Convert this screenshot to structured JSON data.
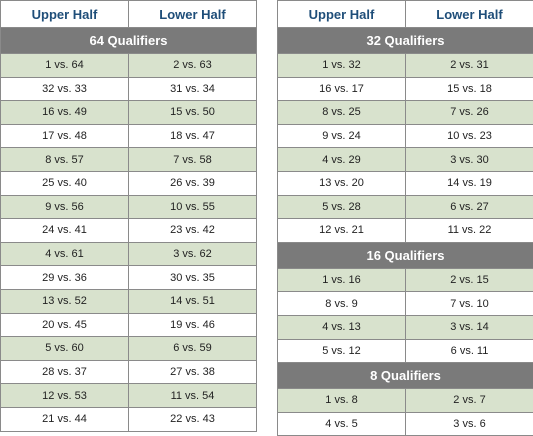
{
  "headers": {
    "upper": "Upper Half",
    "lower": "Lower Half"
  },
  "left": {
    "section": "64 Qualifiers",
    "rows": [
      {
        "upper": "1 vs. 64",
        "lower": "2 vs. 63"
      },
      {
        "upper": "32 vs. 33",
        "lower": "31 vs. 34"
      },
      {
        "upper": "16 vs. 49",
        "lower": "15 vs. 50"
      },
      {
        "upper": "17 vs. 48",
        "lower": "18 vs. 47"
      },
      {
        "upper": "8 vs. 57",
        "lower": "7 vs. 58"
      },
      {
        "upper": "25 vs. 40",
        "lower": "26 vs. 39"
      },
      {
        "upper": "9 vs. 56",
        "lower": "10 vs. 55"
      },
      {
        "upper": "24 vs. 41",
        "lower": "23 vs. 42"
      },
      {
        "upper": "4 vs. 61",
        "lower": "3 vs. 62"
      },
      {
        "upper": "29 vs. 36",
        "lower": "30 vs. 35"
      },
      {
        "upper": "13 vs. 52",
        "lower": "14 vs. 51"
      },
      {
        "upper": "20 vs. 45",
        "lower": "19 vs. 46"
      },
      {
        "upper": "5 vs. 60",
        "lower": "6 vs. 59"
      },
      {
        "upper": "28 vs. 37",
        "lower": "27 vs. 38"
      },
      {
        "upper": "12 vs. 53",
        "lower": "11 vs. 54"
      },
      {
        "upper": "21 vs. 44",
        "lower": "22 vs. 43"
      }
    ]
  },
  "right": {
    "sections": [
      {
        "title": "32 Qualifiers",
        "rows": [
          {
            "upper": "1 vs. 32",
            "lower": "2 vs. 31"
          },
          {
            "upper": "16 vs. 17",
            "lower": "15 vs. 18"
          },
          {
            "upper": "8 vs. 25",
            "lower": "7 vs. 26"
          },
          {
            "upper": "9 vs. 24",
            "lower": "10 vs. 23"
          },
          {
            "upper": "4 vs. 29",
            "lower": "3 vs. 30"
          },
          {
            "upper": "13 vs. 20",
            "lower": "14 vs. 19"
          },
          {
            "upper": "5 vs. 28",
            "lower": "6 vs. 27"
          },
          {
            "upper": "12 vs. 21",
            "lower": "11 vs. 22"
          }
        ]
      },
      {
        "title": "16 Qualifiers",
        "rows": [
          {
            "upper": "1 vs. 16",
            "lower": "2 vs. 15"
          },
          {
            "upper": "8 vs. 9",
            "lower": "7 vs. 10"
          },
          {
            "upper": "4 vs. 13",
            "lower": "3 vs. 14"
          },
          {
            "upper": "5 vs. 12",
            "lower": "6 vs. 11"
          }
        ]
      },
      {
        "title": "8 Qualifiers",
        "rows": [
          {
            "upper": "1 vs. 8",
            "lower": "2 vs. 7"
          },
          {
            "upper": "4 vs. 5",
            "lower": "3 vs. 6"
          }
        ]
      }
    ]
  }
}
